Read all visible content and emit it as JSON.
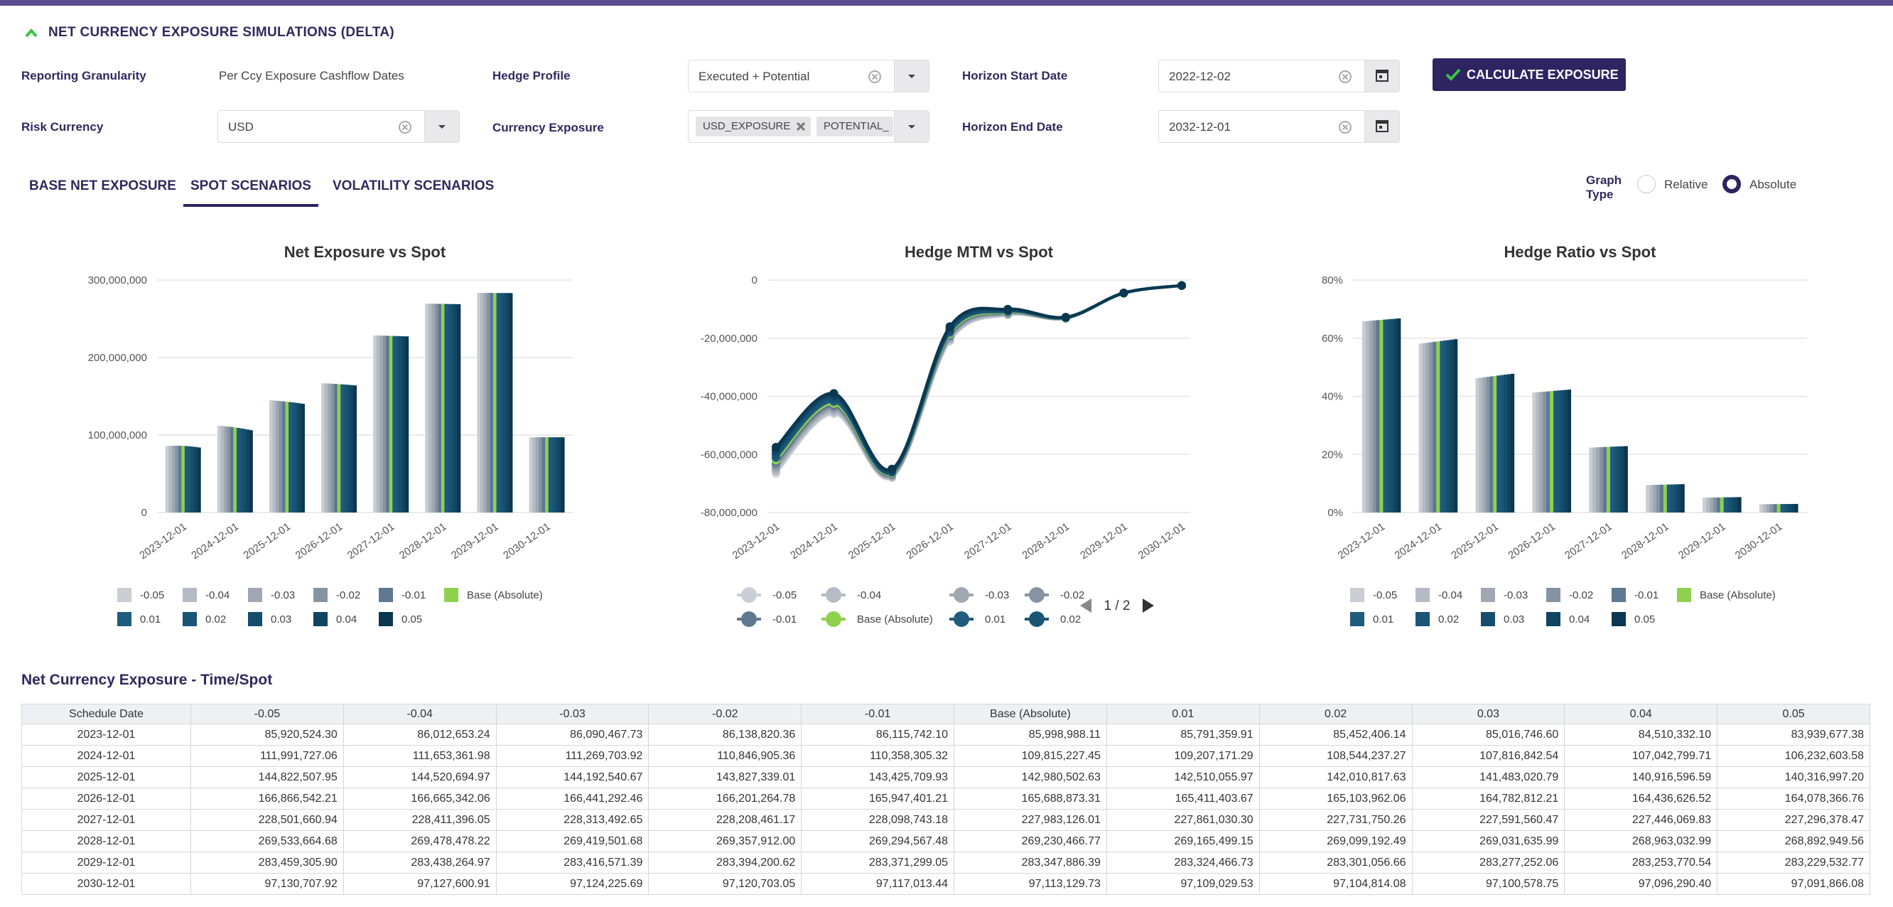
{
  "header": {
    "title": "NET CURRENCY EXPOSURE SIMULATIONS (DELTA)"
  },
  "fields": [
    {
      "label": "Reporting Granularity",
      "value": "Per Ccy Exposure Cashflow Dates"
    },
    {
      "label": "Hedge Profile",
      "value": "Executed + Potential"
    },
    {
      "label": "Horizon Start Date",
      "value": "2022-12-02"
    },
    {
      "label": "Risk Currency",
      "value": "USD"
    },
    {
      "label": "Currency Exposure",
      "chips": [
        "USD_EXPOSURE",
        "POTENTIAL_"
      ]
    },
    {
      "label": "Horizon End Date",
      "value": "2032-12-01"
    }
  ],
  "button": "CALCULATE EXPOSURE",
  "tabs": [
    {
      "label": "BASE NET EXPOSURE",
      "active": false
    },
    {
      "label": "SPOT SCENARIOS",
      "active": true
    },
    {
      "label": "VOLATILITY SCENARIOS",
      "active": false
    }
  ],
  "graph_type": {
    "label": "Graph Type",
    "options": [
      {
        "label": "Relative",
        "selected": false
      },
      {
        "label": "Absolute",
        "selected": true
      }
    ]
  },
  "chart_data": [
    {
      "type": "bar",
      "title": "Net Exposure vs Spot",
      "grid": true,
      "categories": [
        "2023-12-01",
        "2024-12-01",
        "2025-12-01",
        "2026-12-01",
        "2027-12-01",
        "2028-12-01",
        "2029-12-01",
        "2030-12-01"
      ],
      "ylim": [
        0,
        300000000
      ],
      "yticks": [
        0,
        {
          "value": 100000000,
          "label": "100,000,000"
        },
        {
          "value": 200000000,
          "label": "200,000,000"
        },
        {
          "value": 300000000,
          "label": "300,000,000"
        }
      ],
      "series": [
        {
          "name": "-0.05",
          "color": "#c9ced4",
          "values": [
            85920524.3,
            111991727.06,
            144822507.95,
            166866542.21,
            228501660.94,
            269533664.68,
            283459305.9,
            97130707.92
          ]
        },
        {
          "name": "-0.04",
          "color": "#b4bbc4",
          "values": [
            86012653.24,
            111653361.98,
            144520694.97,
            166665342.06,
            228411396.05,
            269478478.22,
            283438264.97,
            97127600.91
          ]
        },
        {
          "name": "-0.03",
          "color": "#9fa8b3",
          "values": [
            86090467.73,
            111269703.92,
            144192540.67,
            166441292.46,
            228313492.65,
            269419501.68,
            283416571.39,
            97124225.69
          ]
        },
        {
          "name": "-0.02",
          "color": "#8693a2",
          "values": [
            86138820.36,
            110846905.36,
            143827339.01,
            166201264.78,
            228208461.17,
            269357912,
            283394200.62,
            97120703.05
          ]
        },
        {
          "name": "-0.01",
          "color": "#5e7890",
          "values": [
            86115742.1,
            110358305.32,
            143425709.93,
            165947401.21,
            228098743.18,
            269294567.48,
            283371299.05,
            97117013.44
          ]
        },
        {
          "name": "Base (Absolute)",
          "color": "#8fd14f",
          "values": [
            85998988.11,
            109815227.45,
            142980502.63,
            165688873.31,
            227983126.01,
            269230466.77,
            283347886.39,
            97113129.73
          ]
        },
        {
          "name": "0.01",
          "color": "#1f5b7c",
          "values": [
            85791359.91,
            109207171.29,
            142510055.97,
            165411403.67,
            227861030.3,
            269165499.15,
            283324466.73,
            97109029.53
          ]
        },
        {
          "name": "0.02",
          "color": "#1a5576",
          "values": [
            85452406.14,
            108544237.27,
            142010817.63,
            165103962.06,
            227731750.26,
            269099192.49,
            283301056.66,
            97104814.08
          ]
        },
        {
          "name": "0.03",
          "color": "#154d6c",
          "values": [
            85016746.6,
            107816842.54,
            141483020.79,
            164782812.21,
            227591560.47,
            269031635.99,
            283277252.06,
            97100578.75
          ]
        },
        {
          "name": "0.04",
          "color": "#104461",
          "values": [
            84510332.1,
            107042799.71,
            140916596.59,
            164436626.52,
            227446069.83,
            268963032.99,
            283253770.54,
            97096290.4
          ]
        },
        {
          "name": "0.05",
          "color": "#0b3750",
          "values": [
            83939677.38,
            106232603.58,
            140316997.2,
            164078366.76,
            227296378.47,
            268892949.56,
            283229532.77,
            97091866.08
          ]
        }
      ]
    },
    {
      "type": "line",
      "title": "Hedge MTM vs Spot",
      "grid": true,
      "legend_page": "1 / 2",
      "categories": [
        "2023-12-01",
        "2024-12-01",
        "2025-12-01",
        "2026-12-01",
        "2027-12-01",
        "2028-12-01",
        "2029-12-01",
        "2030-12-01"
      ],
      "ylim": [
        -80000000,
        0
      ],
      "yticks": [
        {
          "value": -80000000,
          "label": "-80,000,000"
        },
        {
          "value": -60000000,
          "label": "-60,000,000"
        },
        {
          "value": -40000000,
          "label": "-40,000,000"
        },
        {
          "value": -20000000,
          "label": "-20,000,000"
        },
        0
      ],
      "series": [
        {
          "name": "-0.05",
          "color": "#c9ced4",
          "values": [
            -66500000,
            -46000000,
            -68000000,
            -21000000,
            -12000000,
            -13250000,
            -4600000,
            -1950000
          ]
        },
        {
          "name": "-0.04",
          "color": "#b4bbc4",
          "values": [
            -65600000,
            -45300000,
            -67700000,
            -20500000,
            -11800000,
            -13200000,
            -4580000,
            -1940000
          ]
        },
        {
          "name": "-0.03",
          "color": "#9fa8b3",
          "values": [
            -64700000,
            -44600000,
            -67400000,
            -20000000,
            -11600000,
            -13150000,
            -4560000,
            -1930000
          ]
        },
        {
          "name": "-0.02",
          "color": "#8693a2",
          "values": [
            -63800000,
            -43900000,
            -67100000,
            -19500000,
            -11400000,
            -13100000,
            -4540000,
            -1920000
          ]
        },
        {
          "name": "-0.01",
          "color": "#5e7890",
          "values": [
            -62900000,
            -43200000,
            -66800000,
            -19000000,
            -11200000,
            -13050000,
            -4520000,
            -1910000
          ]
        },
        {
          "name": "Base (Absolute)",
          "color": "#8fd14f",
          "values": [
            -62000000,
            -42500000,
            -66500000,
            -18500000,
            -11000000,
            -13000000,
            -4500000,
            -1900000
          ]
        },
        {
          "name": "0.01",
          "color": "#1f5b7c",
          "values": [
            -61100000,
            -41800000,
            -66200000,
            -18000000,
            -10800000,
            -12950000,
            -4480000,
            -1890000
          ]
        },
        {
          "name": "0.02",
          "color": "#1a5576",
          "values": [
            -60200000,
            -41100000,
            -65900000,
            -17500000,
            -10600000,
            -12900000,
            -4460000,
            -1880000
          ]
        },
        {
          "color": "#154d6c",
          "values": [
            -59300000,
            -40400000,
            -65600000,
            -17000000,
            -10400000,
            -12850000,
            -4440000,
            -1870000
          ]
        },
        {
          "color": "#104461",
          "values": [
            -58400000,
            -39700000,
            -65300000,
            -16500000,
            -10200000,
            -12800000,
            -4420000,
            -1860000
          ]
        },
        {
          "color": "#0b3750",
          "values": [
            -57500000,
            -39000000,
            -65000000,
            -16000000,
            -10000000,
            -12750000,
            -4400000,
            -1850000
          ]
        }
      ]
    },
    {
      "type": "bar",
      "title": "Hedge Ratio vs Spot",
      "grid": true,
      "categories": [
        "2023-12-01",
        "2024-12-01",
        "2025-12-01",
        "2026-12-01",
        "2027-12-01",
        "2028-12-01",
        "2029-12-01",
        "2030-12-01"
      ],
      "ylim": [
        0,
        80
      ],
      "yticks": [
        {
          "value": 0,
          "label": "0%"
        },
        {
          "value": 20,
          "label": "20%"
        },
        {
          "value": 40,
          "label": "40%"
        },
        {
          "value": 60,
          "label": "60%"
        },
        {
          "value": 80,
          "label": "80%"
        }
      ],
      "series": [
        {
          "name": "-0.05",
          "color": "#c9ced4",
          "values": [
            65.8,
            58.15,
            46.25,
            41.3,
            22.35,
            9.45,
            5.1,
            2.85
          ]
        },
        {
          "name": "-0.04",
          "color": "#b4bbc4",
          "values": [
            65.9,
            58.3,
            46.4,
            41.4,
            22.4,
            9.48,
            5.12,
            2.86
          ]
        },
        {
          "name": "-0.03",
          "color": "#9fa8b3",
          "values": [
            66.0,
            58.45,
            46.55,
            41.5,
            22.45,
            9.51,
            5.14,
            2.87
          ]
        },
        {
          "name": "-0.02",
          "color": "#8693a2",
          "values": [
            66.1,
            58.6,
            46.7,
            41.6,
            22.5,
            9.54,
            5.16,
            2.88
          ]
        },
        {
          "name": "-0.01",
          "color": "#5e7890",
          "values": [
            66.2,
            58.75,
            46.85,
            41.7,
            22.55,
            9.57,
            5.18,
            2.89
          ]
        },
        {
          "name": "Base (Absolute)",
          "color": "#8fd14f",
          "values": [
            66.3,
            58.9,
            47.0,
            41.8,
            22.6,
            9.6,
            5.2,
            2.9
          ]
        },
        {
          "name": "0.01",
          "color": "#1f5b7c",
          "values": [
            66.4,
            59.05,
            47.15,
            41.9,
            22.65,
            9.63,
            5.22,
            2.91
          ]
        },
        {
          "name": "0.02",
          "color": "#1a5576",
          "values": [
            66.5,
            59.2,
            47.3,
            42.0,
            22.7,
            9.66,
            5.24,
            2.92
          ]
        },
        {
          "name": "0.03",
          "color": "#154d6c",
          "values": [
            66.6,
            59.35,
            47.45,
            42.1,
            22.75,
            9.69,
            5.26,
            2.93
          ]
        },
        {
          "name": "0.04",
          "color": "#104461",
          "values": [
            66.7,
            59.5,
            47.6,
            42.2,
            22.8,
            9.72,
            5.28,
            2.94
          ]
        },
        {
          "name": "0.05",
          "color": "#0b3750",
          "values": [
            66.8,
            59.65,
            47.75,
            42.3,
            22.85,
            9.75,
            5.3,
            2.95
          ]
        }
      ]
    }
  ],
  "table": {
    "title": "Net Currency Exposure - Time/Spot",
    "columns": [
      "Schedule Date",
      "-0.05",
      "-0.04",
      "-0.03",
      "-0.02",
      "-0.01",
      "Base (Absolute)",
      "0.01",
      "0.02",
      "0.03",
      "0.04",
      "0.05"
    ],
    "rows": [
      [
        "2023-12-01",
        "85,920,524.30",
        "86,012,653.24",
        "86,090,467.73",
        "86,138,820.36",
        "86,115,742.10",
        "85,998,988.11",
        "85,791,359.91",
        "85,452,406.14",
        "85,016,746.60",
        "84,510,332.10",
        "83,939,677.38"
      ],
      [
        "2024-12-01",
        "111,991,727.06",
        "111,653,361.98",
        "111,269,703.92",
        "110,846,905.36",
        "110,358,305.32",
        "109,815,227.45",
        "109,207,171.29",
        "108,544,237.27",
        "107,816,842.54",
        "107,042,799.71",
        "106,232,603.58"
      ],
      [
        "2025-12-01",
        "144,822,507.95",
        "144,520,694.97",
        "144,192,540.67",
        "143,827,339.01",
        "143,425,709.93",
        "142,980,502.63",
        "142,510,055.97",
        "142,010,817.63",
        "141,483,020.79",
        "140,916,596.59",
        "140,316,997.20"
      ],
      [
        "2026-12-01",
        "166,866,542.21",
        "166,665,342.06",
        "166,441,292.46",
        "166,201,264.78",
        "165,947,401.21",
        "165,688,873.31",
        "165,411,403.67",
        "165,103,962.06",
        "164,782,812.21",
        "164,436,626.52",
        "164,078,366.76"
      ],
      [
        "2027-12-01",
        "228,501,660.94",
        "228,411,396.05",
        "228,313,492.65",
        "228,208,461.17",
        "228,098,743.18",
        "227,983,126.01",
        "227,861,030.30",
        "227,731,750.26",
        "227,591,560.47",
        "227,446,069.83",
        "227,296,378.47"
      ],
      [
        "2028-12-01",
        "269,533,664.68",
        "269,478,478.22",
        "269,419,501.68",
        "269,357,912.00",
        "269,294,567.48",
        "269,230,466.77",
        "269,165,499.15",
        "269,099,192.49",
        "269,031,635.99",
        "268,963,032.99",
        "268,892,949.56"
      ],
      [
        "2029-12-01",
        "283,459,305.90",
        "283,438,264.97",
        "283,416,571.39",
        "283,394,200.62",
        "283,371,299.05",
        "283,347,886.39",
        "283,324,466.73",
        "283,301,056.66",
        "283,277,252.06",
        "283,253,770.54",
        "283,229,532.77"
      ],
      [
        "2030-12-01",
        "97,130,707.92",
        "97,127,600.91",
        "97,124,225.69",
        "97,120,703.05",
        "97,117,013.44",
        "97,113,129.73",
        "97,109,029.53",
        "97,104,814.08",
        "97,100,578.75",
        "97,096,290.40",
        "97,091,866.08"
      ]
    ]
  }
}
